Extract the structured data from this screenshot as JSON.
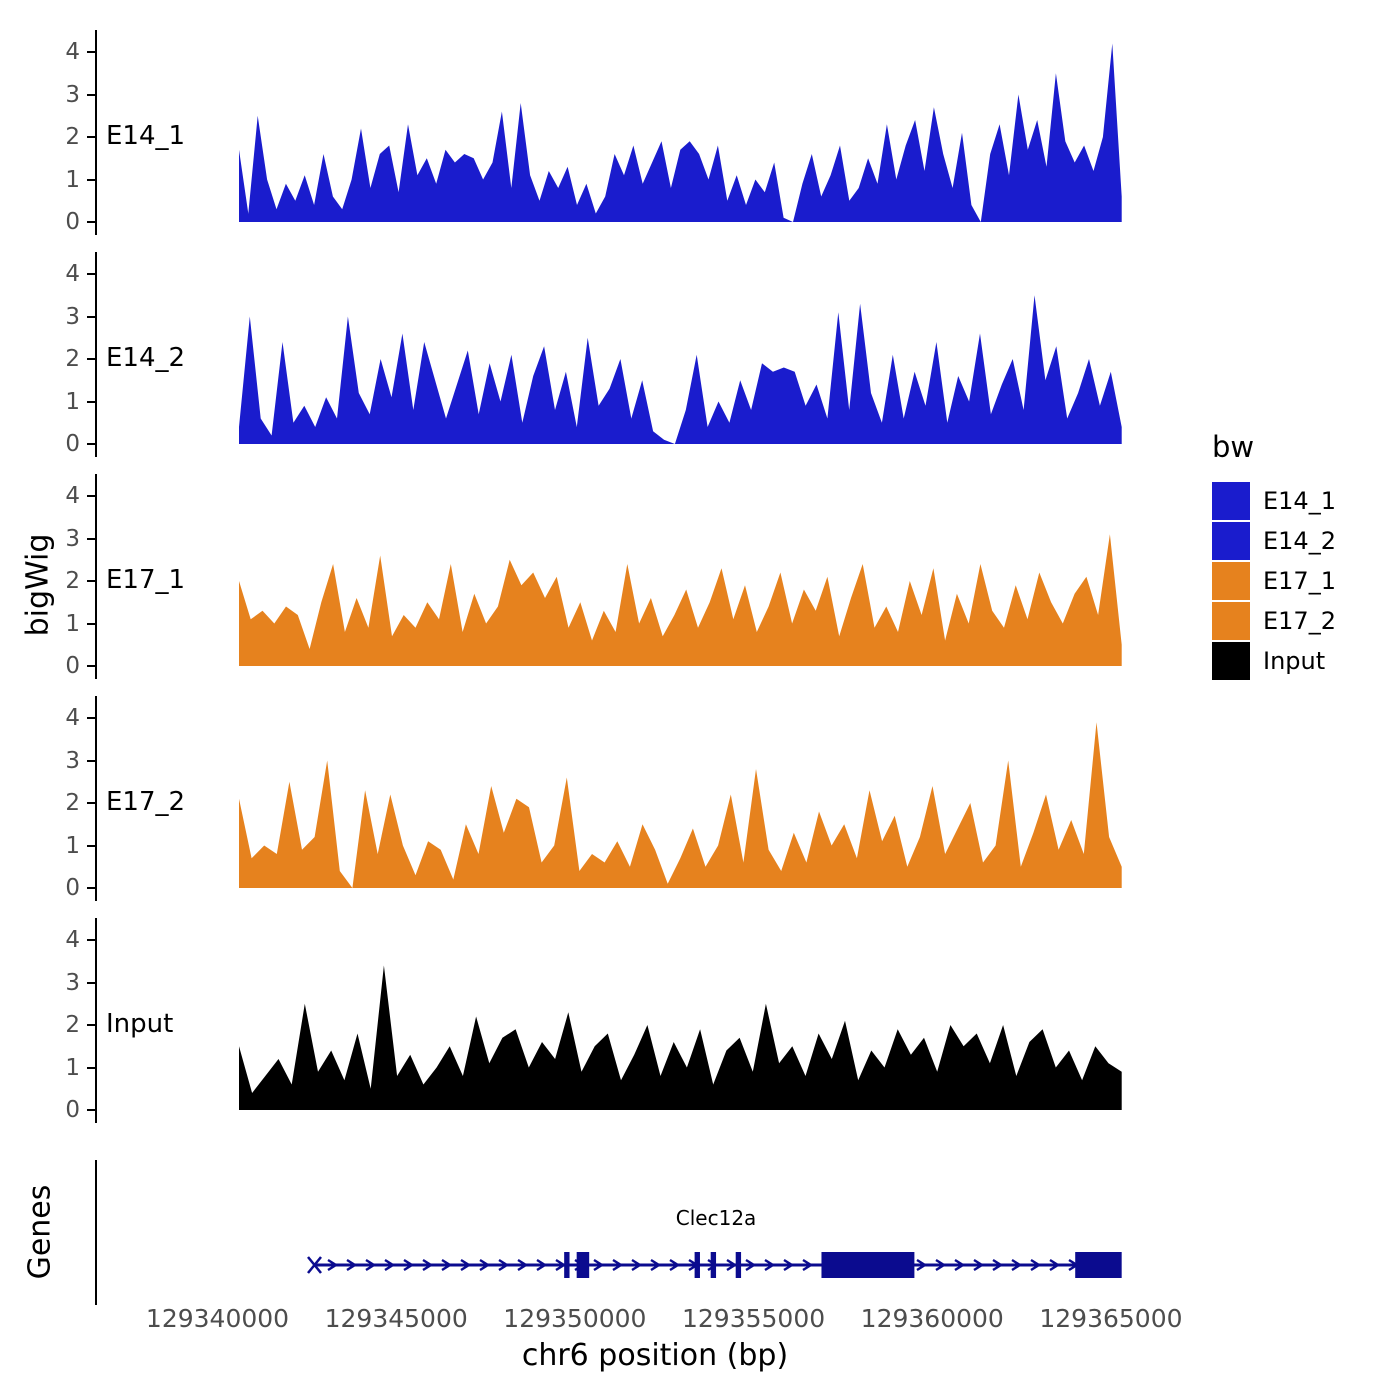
{
  "figure": {
    "y_axis_label": "bigWig",
    "genes_label": "Genes",
    "x_axis_label": "chr6 position (bp)",
    "legend": {
      "title": "bw",
      "entries": [
        {
          "label": "E14_1",
          "color": "#1A1CCD"
        },
        {
          "label": "E14_2",
          "color": "#1A1CCD"
        },
        {
          "label": "E17_1",
          "color": "#E6821E"
        },
        {
          "label": "E17_2",
          "color": "#E6821E"
        },
        {
          "label": "Input",
          "color": "#000000"
        }
      ]
    }
  },
  "chart_data": {
    "type": "area",
    "title": "",
    "xlabel": "chr6 position (bp)",
    "ylabel": "bigWig",
    "x_domain": [
      129336600,
      129367100
    ],
    "data_range": [
      129340600,
      129365300
    ],
    "x_ticks": [
      129340000,
      129345000,
      129350000,
      129355000,
      129360000,
      129365000
    ],
    "y_ticks": [
      0,
      1,
      2,
      3,
      4
    ],
    "ylim": [
      0,
      4.3
    ],
    "grid": false,
    "legend_position": "right",
    "series": [
      {
        "name": "E14_1",
        "color": "#1A1CCD",
        "values": [
          1.7,
          0.2,
          2.5,
          1.0,
          0.3,
          0.9,
          0.5,
          1.1,
          0.4,
          1.6,
          0.6,
          0.3,
          1.0,
          2.2,
          0.8,
          1.6,
          1.8,
          0.7,
          2.3,
          1.1,
          1.5,
          0.9,
          1.7,
          1.4,
          1.6,
          1.5,
          1.0,
          1.4,
          2.6,
          0.8,
          2.8,
          1.1,
          0.5,
          1.2,
          0.8,
          1.3,
          0.4,
          0.9,
          0.2,
          0.6,
          1.6,
          1.1,
          1.8,
          0.9,
          1.4,
          1.9,
          0.8,
          1.7,
          1.9,
          1.6,
          1.0,
          1.8,
          0.5,
          1.1,
          0.4,
          1.0,
          0.7,
          1.4,
          0.1,
          0.0,
          0.9,
          1.6,
          0.6,
          1.1,
          1.8,
          0.5,
          0.8,
          1.5,
          0.9,
          2.3,
          1.0,
          1.8,
          2.4,
          1.2,
          2.7,
          1.6,
          0.8,
          2.1,
          0.4,
          0.0,
          1.6,
          2.3,
          1.1,
          3.0,
          1.7,
          2.4,
          1.3,
          3.5,
          1.9,
          1.4,
          1.8,
          1.2,
          2.0,
          4.2,
          0.6
        ]
      },
      {
        "name": "E14_2",
        "color": "#1A1CCD",
        "values": [
          0.4,
          3.0,
          0.6,
          0.2,
          2.4,
          0.5,
          0.9,
          0.4,
          1.1,
          0.6,
          3.0,
          1.2,
          0.7,
          2.0,
          1.1,
          2.6,
          0.8,
          2.4,
          1.5,
          0.6,
          1.4,
          2.2,
          0.7,
          1.9,
          1.0,
          2.1,
          0.5,
          1.6,
          2.3,
          0.8,
          1.7,
          0.4,
          2.5,
          0.9,
          1.3,
          2.0,
          0.6,
          1.5,
          0.3,
          0.1,
          0.0,
          0.8,
          2.1,
          0.4,
          1.0,
          0.5,
          1.5,
          0.8,
          1.9,
          1.7,
          1.8,
          1.7,
          0.9,
          1.4,
          0.6,
          3.1,
          0.8,
          3.3,
          1.2,
          0.5,
          2.1,
          0.6,
          1.7,
          0.9,
          2.4,
          0.5,
          1.6,
          1.0,
          2.6,
          0.7,
          1.4,
          2.0,
          0.8,
          3.5,
          1.5,
          2.3,
          0.6,
          1.2,
          2.0,
          0.9,
          1.7,
          0.4
        ]
      },
      {
        "name": "E17_1",
        "color": "#E6821E",
        "values": [
          2.0,
          1.1,
          1.3,
          1.0,
          1.4,
          1.2,
          0.4,
          1.5,
          2.4,
          0.8,
          1.6,
          0.9,
          2.6,
          0.7,
          1.2,
          0.9,
          1.5,
          1.1,
          2.4,
          0.8,
          1.7,
          1.0,
          1.4,
          2.5,
          1.9,
          2.2,
          1.6,
          2.1,
          0.9,
          1.5,
          0.6,
          1.3,
          0.8,
          2.4,
          1.0,
          1.6,
          0.7,
          1.2,
          1.8,
          0.9,
          1.5,
          2.3,
          1.1,
          1.9,
          0.8,
          1.4,
          2.2,
          1.0,
          1.8,
          1.3,
          2.1,
          0.7,
          1.6,
          2.4,
          0.9,
          1.4,
          0.8,
          2.0,
          1.2,
          2.3,
          0.6,
          1.7,
          1.0,
          2.4,
          1.3,
          0.9,
          1.9,
          1.1,
          2.2,
          1.5,
          1.0,
          1.7,
          2.1,
          1.2,
          3.1,
          0.5
        ]
      },
      {
        "name": "E17_2",
        "color": "#E6821E",
        "values": [
          2.1,
          0.7,
          1.0,
          0.8,
          2.5,
          0.9,
          1.2,
          3.0,
          0.4,
          0.0,
          2.3,
          0.8,
          2.2,
          1.0,
          0.3,
          1.1,
          0.9,
          0.2,
          1.5,
          0.8,
          2.4,
          1.3,
          2.1,
          1.9,
          0.6,
          1.0,
          2.6,
          0.4,
          0.8,
          0.6,
          1.1,
          0.5,
          1.5,
          0.9,
          0.1,
          0.7,
          1.4,
          0.5,
          1.0,
          2.2,
          0.6,
          2.8,
          0.9,
          0.4,
          1.3,
          0.6,
          1.8,
          1.0,
          1.5,
          0.7,
          2.3,
          1.1,
          1.7,
          0.5,
          1.2,
          2.4,
          0.8,
          1.4,
          2.0,
          0.6,
          1.0,
          3.0,
          0.5,
          1.3,
          2.2,
          0.9,
          1.6,
          0.8,
          3.9,
          1.2,
          0.5
        ]
      },
      {
        "name": "Input",
        "color": "#000000",
        "values": [
          1.5,
          0.4,
          0.8,
          1.2,
          0.6,
          2.5,
          0.9,
          1.4,
          0.7,
          1.8,
          0.5,
          3.4,
          0.8,
          1.3,
          0.6,
          1.0,
          1.5,
          0.8,
          2.2,
          1.1,
          1.7,
          1.9,
          1.0,
          1.6,
          1.2,
          2.3,
          0.9,
          1.5,
          1.8,
          0.7,
          1.3,
          2.0,
          0.8,
          1.6,
          1.0,
          1.9,
          0.6,
          1.4,
          1.7,
          0.9,
          2.5,
          1.1,
          1.5,
          0.8,
          1.8,
          1.2,
          2.1,
          0.7,
          1.4,
          1.0,
          1.9,
          1.3,
          1.7,
          0.9,
          2.0,
          1.5,
          1.8,
          1.1,
          2.0,
          0.8,
          1.6,
          1.9,
          1.0,
          1.4,
          0.7,
          1.5,
          1.1,
          0.9
        ]
      }
    ],
    "gene_track": {
      "name": "Clec12a",
      "strand": "+",
      "color": "#0B0B8F",
      "line_start": 129342700,
      "line_end": 129365200,
      "exons": [
        [
          129349700,
          129349850
        ],
        [
          129350050,
          129350400
        ],
        [
          129353350,
          129353500
        ],
        [
          129353800,
          129353950
        ],
        [
          129354500,
          129354650
        ],
        [
          129356900,
          129359500
        ],
        [
          129364000,
          129365300
        ]
      ]
    }
  }
}
